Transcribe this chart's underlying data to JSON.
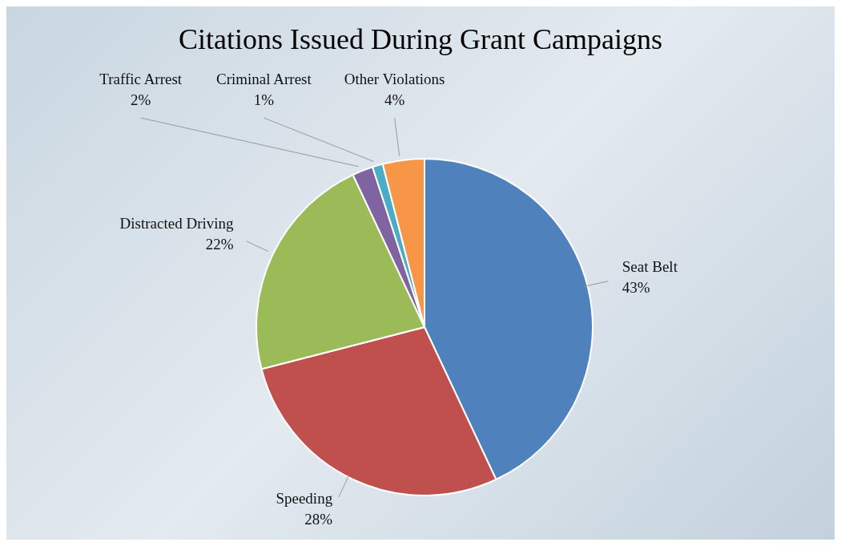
{
  "chart_data": {
    "type": "pie",
    "title": "Citations Issued During Grant Campaigns",
    "categories": [
      "Seat Belt",
      "Speeding",
      "Distracted Driving",
      "Traffic Arrest",
      "Criminal Arrest",
      "Other Violations"
    ],
    "values": [
      43,
      28,
      22,
      2,
      1,
      4
    ],
    "value_labels": [
      "43%",
      "28%",
      "22%",
      "2%",
      "1%",
      "4%"
    ],
    "colors": [
      "#4f81bd",
      "#c0504d",
      "#9bbb59",
      "#8064a2",
      "#4bacc6",
      "#f79646"
    ]
  }
}
